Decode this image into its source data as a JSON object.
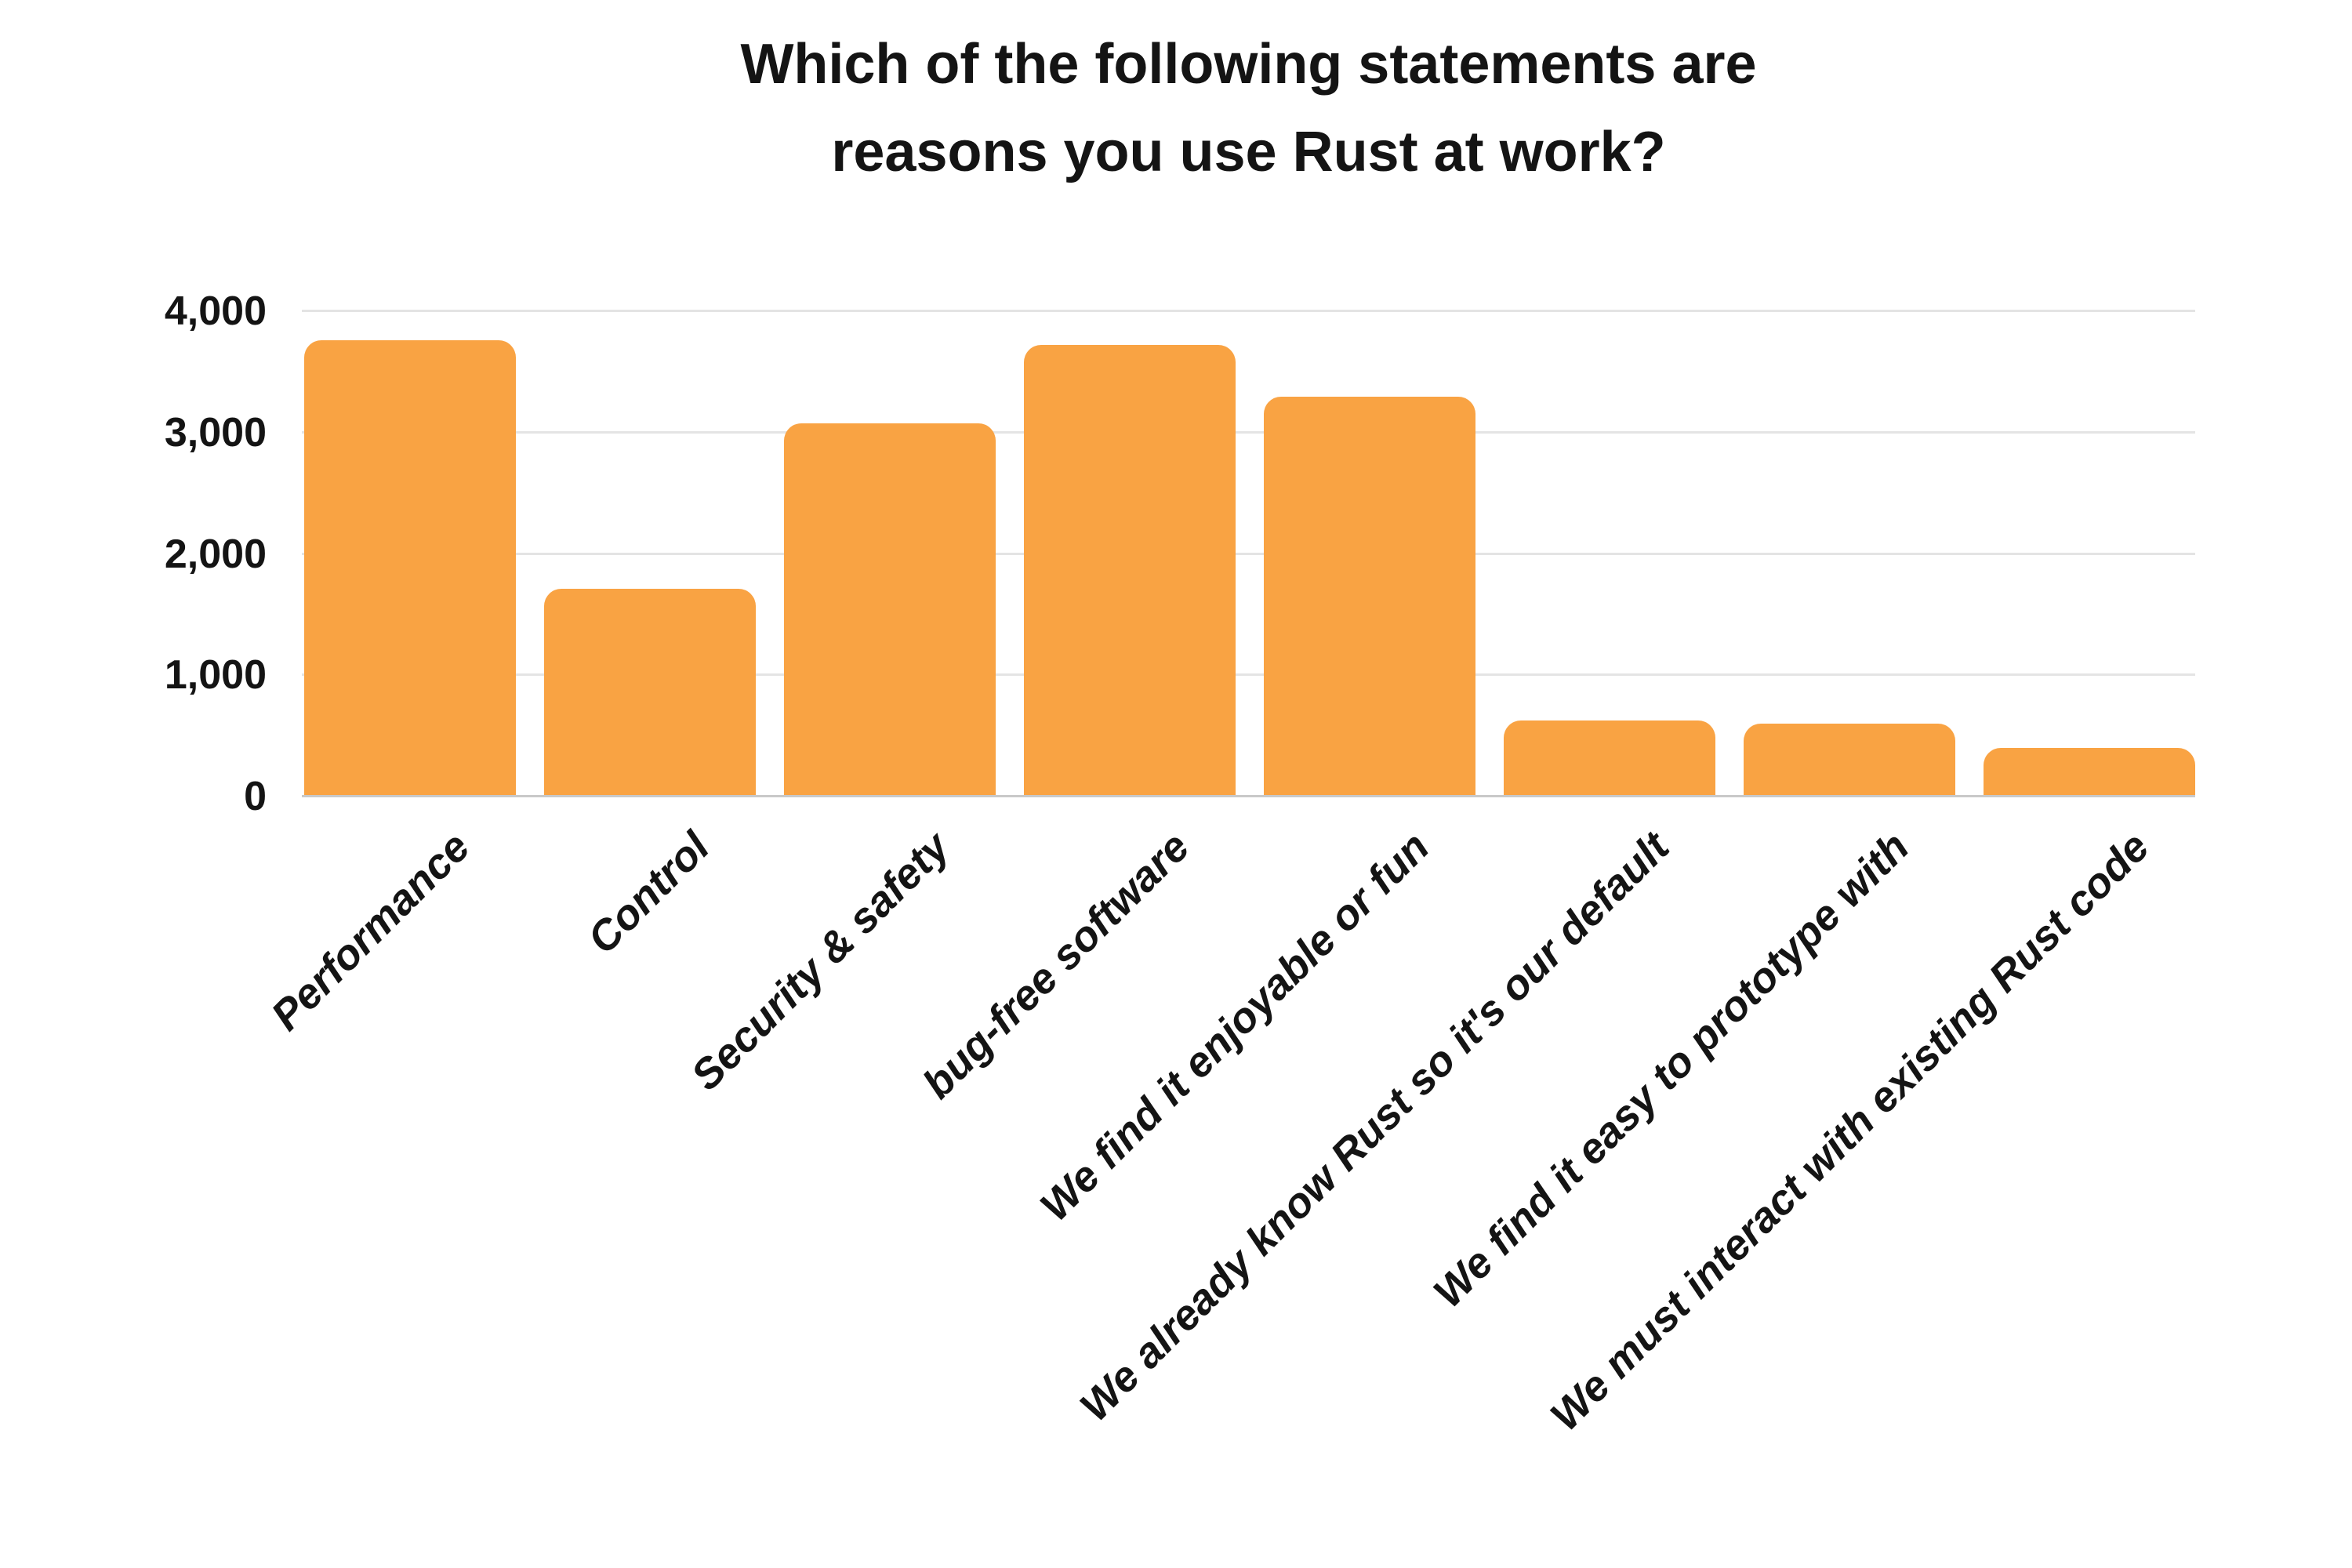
{
  "title": {
    "line1": "Which of the following statements are",
    "line2": "reasons you use Rust at work?"
  },
  "chart_data": {
    "type": "bar",
    "title": "Which of the following statements are reasons you use Rust at work?",
    "categories": [
      "Performance",
      "Control",
      "Security & safety",
      "bug-free software",
      "We find it enjoyable or fun",
      "We already know Rust so it's our default",
      "We find it easy to prototype with",
      "We must interact with existing Rust code"
    ],
    "values": [
      3750,
      1700,
      3060,
      3710,
      3280,
      615,
      585,
      390
    ],
    "xlabel": "",
    "ylabel": "",
    "ylim": [
      0,
      4000
    ],
    "ytick_interval": 1000,
    "ytick_labels": [
      "0",
      "1,000",
      "2,000",
      "3,000",
      "4,000"
    ],
    "x_tick_rotation_deg": 45,
    "grid": "horizontal",
    "legend": "none",
    "colors": {
      "bar": "#F9A343",
      "gridline": "#E4E4E4",
      "baseline": "#C9C9C9",
      "text": "#141414",
      "background": "#FFFFFF"
    }
  }
}
